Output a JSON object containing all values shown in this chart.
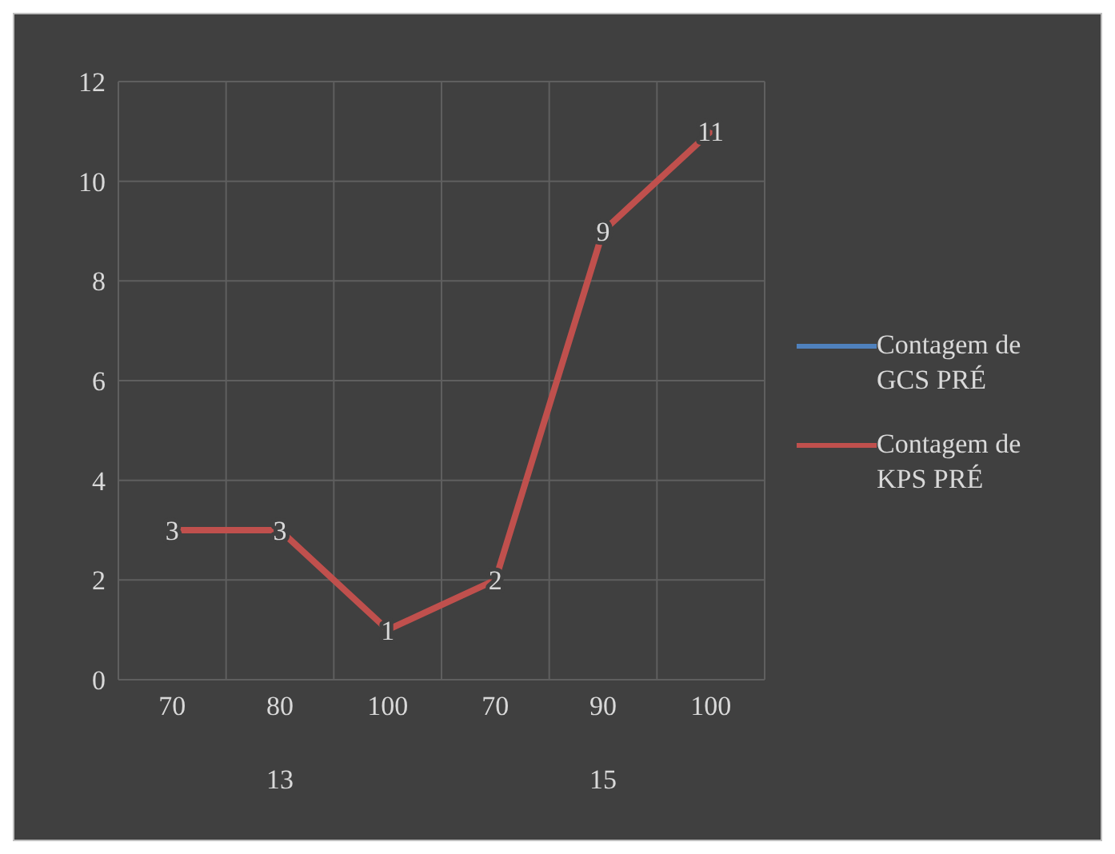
{
  "chart_data": {
    "type": "line",
    "categories": [
      "70",
      "80",
      "100",
      "70",
      "90",
      "100"
    ],
    "series": [
      {
        "name": "Contagem de GCS PRÉ",
        "color": "#4f81bd",
        "values": [
          null,
          null,
          null,
          null,
          null,
          null
        ]
      },
      {
        "name": "Contagem de KPS PRÉ",
        "color": "#c0504d",
        "values": [
          3,
          3,
          1,
          2,
          9,
          11
        ]
      }
    ],
    "annotations": [
      "13",
      "15"
    ],
    "ylim": [
      0,
      12
    ],
    "yticks": [
      0,
      2,
      4,
      6,
      8,
      10,
      12
    ],
    "grid": true,
    "legend": "right",
    "data_labels": true,
    "marker": "none",
    "line_style": "solid"
  }
}
